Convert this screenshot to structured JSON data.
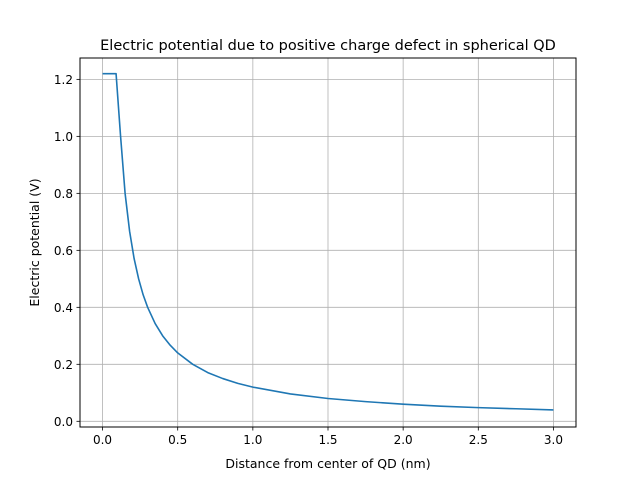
{
  "chart_data": {
    "type": "line",
    "title": "Electric potential due to positive charge defect in spherical QD",
    "xlabel": "Distance from center of QD (nm)",
    "ylabel": "Electric potential (V)",
    "xlim": [
      -0.15,
      3.15
    ],
    "ylim": [
      -0.02,
      1.275
    ],
    "grid": true,
    "xticks": [
      0.0,
      0.5,
      1.0,
      1.5,
      2.0,
      2.5,
      3.0
    ],
    "xtick_labels": [
      "0.0",
      "0.5",
      "1.0",
      "1.5",
      "2.0",
      "2.5",
      "3.0"
    ],
    "yticks": [
      0.0,
      0.2,
      0.4,
      0.6,
      0.8,
      1.0,
      1.2
    ],
    "ytick_labels": [
      "0.0",
      "0.2",
      "0.4",
      "0.6",
      "0.8",
      "1.0",
      "1.2"
    ],
    "series": [
      {
        "color": "#1f77b4",
        "x": [
          0.0,
          0.03,
          0.06,
          0.09,
          0.12,
          0.15,
          0.18,
          0.21,
          0.24,
          0.27,
          0.3,
          0.35,
          0.4,
          0.45,
          0.5,
          0.6,
          0.7,
          0.8,
          0.9,
          1.0,
          1.25,
          1.5,
          1.75,
          2.0,
          2.25,
          2.5,
          2.75,
          3.0
        ],
        "y": [
          1.22,
          1.22,
          1.22,
          1.22,
          1.0,
          0.8,
          0.667,
          0.571,
          0.5,
          0.444,
          0.4,
          0.343,
          0.3,
          0.267,
          0.24,
          0.2,
          0.171,
          0.15,
          0.133,
          0.12,
          0.096,
          0.08,
          0.069,
          0.06,
          0.053,
          0.048,
          0.044,
          0.04
        ]
      }
    ]
  }
}
